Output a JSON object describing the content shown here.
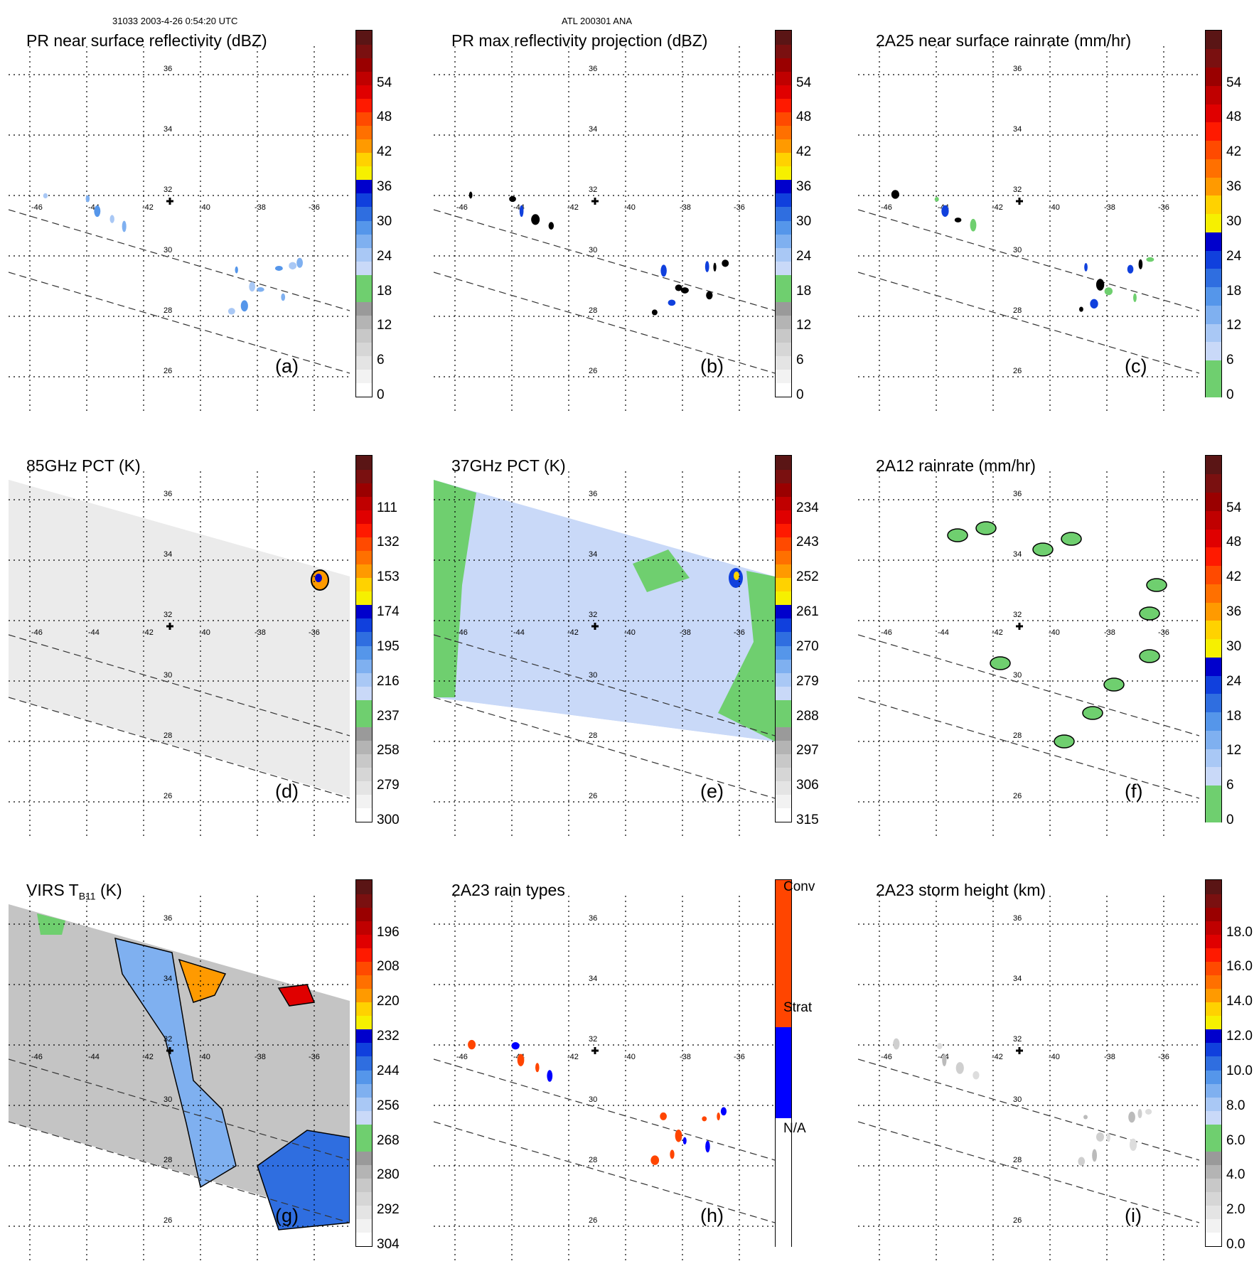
{
  "header": {
    "left": "31033 2003-4-26 0:54:20 UTC",
    "center": "ATL 200301 ANA"
  },
  "grid": {
    "lon_labels": [
      "-46",
      "-44",
      "-42",
      "-40",
      "-38",
      "-36"
    ],
    "lat_labels": [
      "36",
      "34",
      "32",
      "30",
      "28",
      "26"
    ]
  },
  "palettes": {
    "refl": [
      "#ffffff",
      "#f2f2f2",
      "#e4e4e4",
      "#d6d6d6",
      "#c8c8c8",
      "#b4b4b4",
      "#9a9a9a",
      "#6fcf6f",
      "#6fcf6f",
      "#c9d9f8",
      "#a9c8f5",
      "#7fb0f0",
      "#5596ea",
      "#2f6ee0",
      "#1040dd",
      "#0000cc",
      "#f6f000",
      "#ffd200",
      "#ff9a00",
      "#ff7000",
      "#ff4a00",
      "#ff1a00",
      "#e00000",
      "#c00000",
      "#9a0000",
      "#7a1010",
      "#5a1515"
    ],
    "rain": [
      "#6fcf6f",
      "#6fcf6f",
      "#c9d9f8",
      "#a9c8f5",
      "#7fb0f0",
      "#5596ea",
      "#2f6ee0",
      "#1040dd",
      "#0000cc",
      "#f6f000",
      "#ffd200",
      "#ff9a00",
      "#ff7000",
      "#ff4a00",
      "#ff1a00",
      "#e00000",
      "#c00000",
      "#9a0000",
      "#7a1010",
      "#5a1515"
    ],
    "types": [
      "#ffffff",
      "#ffffff",
      "#ffffff",
      "#ffffff",
      "#ffffff",
      "#ffffff",
      "#ffffff",
      "#0000ff",
      "#0000ff",
      "#0000ff",
      "#0000ff",
      "#0000ff",
      "#ff4500",
      "#ff4500",
      "#ff4500",
      "#ff4500",
      "#ff4500",
      "#ff4500",
      "#ff4500",
      "#ff4500"
    ]
  },
  "panels": [
    {
      "title": "PR near surface reflectivity (dBZ)",
      "label": "(a)",
      "palette": "refl",
      "ticks": [
        "0",
        "6",
        "12",
        "18",
        "24",
        "30",
        "36",
        "42",
        "48",
        "54"
      ]
    },
    {
      "title": "PR max reflectivity projection (dBZ)",
      "label": "(b)",
      "palette": "refl",
      "ticks": [
        "0",
        "6",
        "12",
        "18",
        "24",
        "30",
        "36",
        "42",
        "48",
        "54"
      ]
    },
    {
      "title": "2A25 near surface rainrate (mm/hr)",
      "label": "(c)",
      "palette": "rain",
      "ticks": [
        "0",
        "6",
        "12",
        "18",
        "24",
        "30",
        "36",
        "42",
        "48",
        "54"
      ]
    },
    {
      "title": "85GHz PCT (K)",
      "label": "(d)",
      "palette": "refl",
      "ticks": [
        "300",
        "279",
        "258",
        "237",
        "216",
        "195",
        "174",
        "153",
        "132",
        "111"
      ]
    },
    {
      "title": "37GHz PCT (K)",
      "label": "(e)",
      "palette": "refl",
      "ticks": [
        "315",
        "306",
        "297",
        "288",
        "279",
        "270",
        "261",
        "252",
        "243",
        "234"
      ]
    },
    {
      "title": "2A12 rainrate (mm/hr)",
      "label": "(f)",
      "palette": "rain",
      "ticks": [
        "0",
        "6",
        "12",
        "18",
        "24",
        "30",
        "36",
        "42",
        "48",
        "54"
      ]
    },
    {
      "title": "VIRS T",
      "title_sub": "B11",
      "title_suffix": " (K)",
      "label": "(g)",
      "palette": "refl",
      "ticks": [
        "304",
        "292",
        "280",
        "268",
        "256",
        "244",
        "232",
        "220",
        "208",
        "196"
      ]
    },
    {
      "title": "2A23 rain types",
      "label": "(h)",
      "palette": "types",
      "ticks": [],
      "type_labels": [
        "N/A",
        "Strat",
        "Conv"
      ]
    },
    {
      "title": "2A23 storm height (km)",
      "label": "(i)",
      "palette": "refl",
      "ticks": [
        "0.0",
        "2.0",
        "4.0",
        "6.0",
        "8.0",
        "10.0",
        "12.0",
        "14.0",
        "16.0",
        "18.0"
      ]
    }
  ]
}
